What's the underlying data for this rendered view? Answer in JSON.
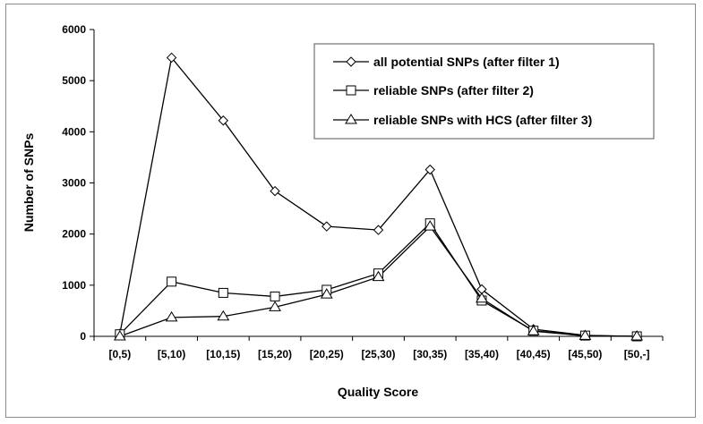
{
  "chart_data": {
    "type": "line",
    "title": "",
    "xlabel": "Quality Score",
    "ylabel": "Number of SNPs",
    "categories": [
      "[0,5)",
      "[5,10)",
      "[10,15)",
      "[15,20)",
      "[20,25)",
      "[25,30)",
      "[30,35)",
      "[35,40)",
      "[40,45)",
      "[45,50)",
      "[50,-]"
    ],
    "ylim": [
      0,
      6000
    ],
    "yticks": [
      0,
      1000,
      2000,
      3000,
      4000,
      5000,
      6000
    ],
    "grid": false,
    "legend_position": "top-right",
    "series": [
      {
        "name": "all potential SNPs (after filter 1)",
        "marker": "diamond",
        "values": [
          50,
          5450,
          4220,
          2840,
          2150,
          2080,
          3260,
          920,
          140,
          20,
          0
        ]
      },
      {
        "name": "reliable SNPs (after filter 2)",
        "marker": "square",
        "values": [
          40,
          1070,
          850,
          780,
          910,
          1230,
          2210,
          700,
          110,
          15,
          0
        ]
      },
      {
        "name": "reliable SNPs with HCS (after filter 3)",
        "marker": "triangle",
        "values": [
          0,
          370,
          390,
          570,
          820,
          1160,
          2150,
          740,
          100,
          10,
          0
        ]
      }
    ]
  }
}
